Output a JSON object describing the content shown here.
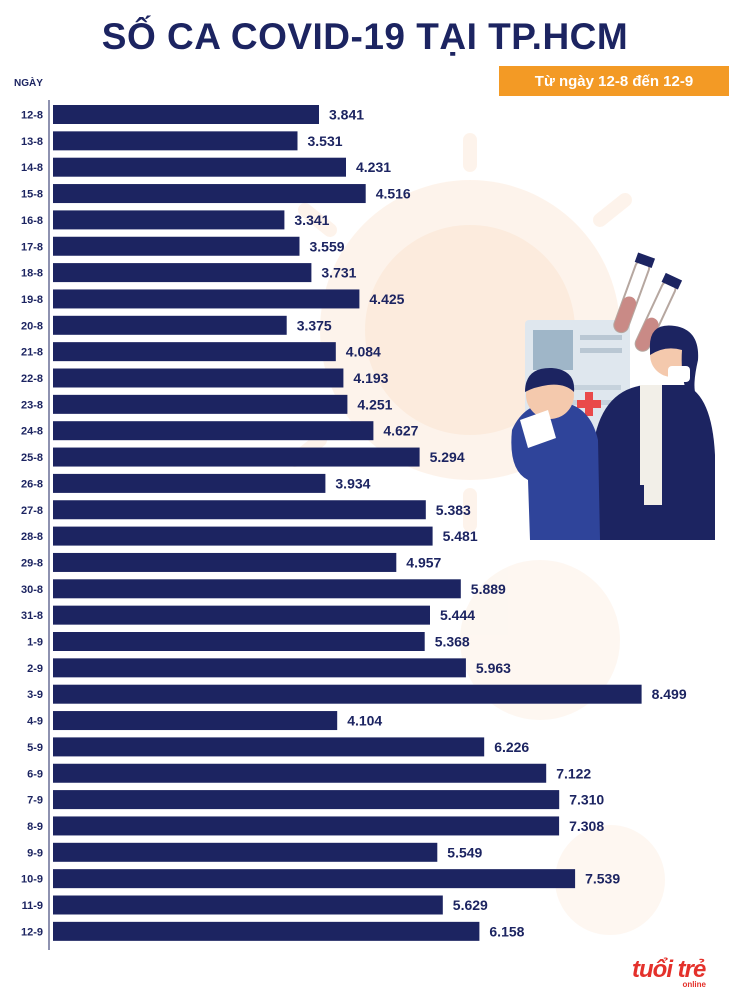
{
  "title": "SỐ CA COVID-19 TẠI TP.HCM",
  "subtitle": "Từ ngày 12-8 đến 12-9",
  "logo": {
    "main": "tuổi trẻ",
    "sub": "online"
  },
  "colors": {
    "bar": "#1c2461",
    "accent": "#f39a25",
    "text": "#1c2461",
    "logo": "#e4312b"
  },
  "chart_data": {
    "type": "bar",
    "orientation": "horizontal",
    "ylabel": "NGÀY",
    "xlim": [
      0,
      9000
    ],
    "categories": [
      "12-8",
      "13-8",
      "14-8",
      "15-8",
      "16-8",
      "17-8",
      "18-8",
      "19-8",
      "20-8",
      "21-8",
      "22-8",
      "23-8",
      "24-8",
      "25-8",
      "26-8",
      "27-8",
      "28-8",
      "29-8",
      "30-8",
      "31-8",
      "1-9",
      "2-9",
      "3-9",
      "4-9",
      "5-9",
      "6-9",
      "7-9",
      "8-9",
      "9-9",
      "10-9",
      "11-9",
      "12-9"
    ],
    "values": [
      3841,
      3531,
      4231,
      4516,
      3341,
      3559,
      3731,
      4425,
      3375,
      4084,
      4193,
      4251,
      4627,
      5294,
      3934,
      5383,
      5481,
      4957,
      5889,
      5444,
      5368,
      5963,
      8499,
      4104,
      6226,
      7122,
      7310,
      7308,
      5549,
      7539,
      5629,
      6158
    ],
    "labels": [
      "3.841",
      "3.531",
      "4.231",
      "4.516",
      "3.341",
      "3.559",
      "3.731",
      "4.425",
      "3.375",
      "4.084",
      "4.193",
      "4.251",
      "4.627",
      "5.294",
      "3.934",
      "5.383",
      "5.481",
      "4.957",
      "5.889",
      "5.444",
      "5.368",
      "5.963",
      "8.499",
      "4.104",
      "6.226",
      "7.122",
      "7.310",
      "7.308",
      "5.549",
      "7.539",
      "5.629",
      "6.158"
    ]
  }
}
